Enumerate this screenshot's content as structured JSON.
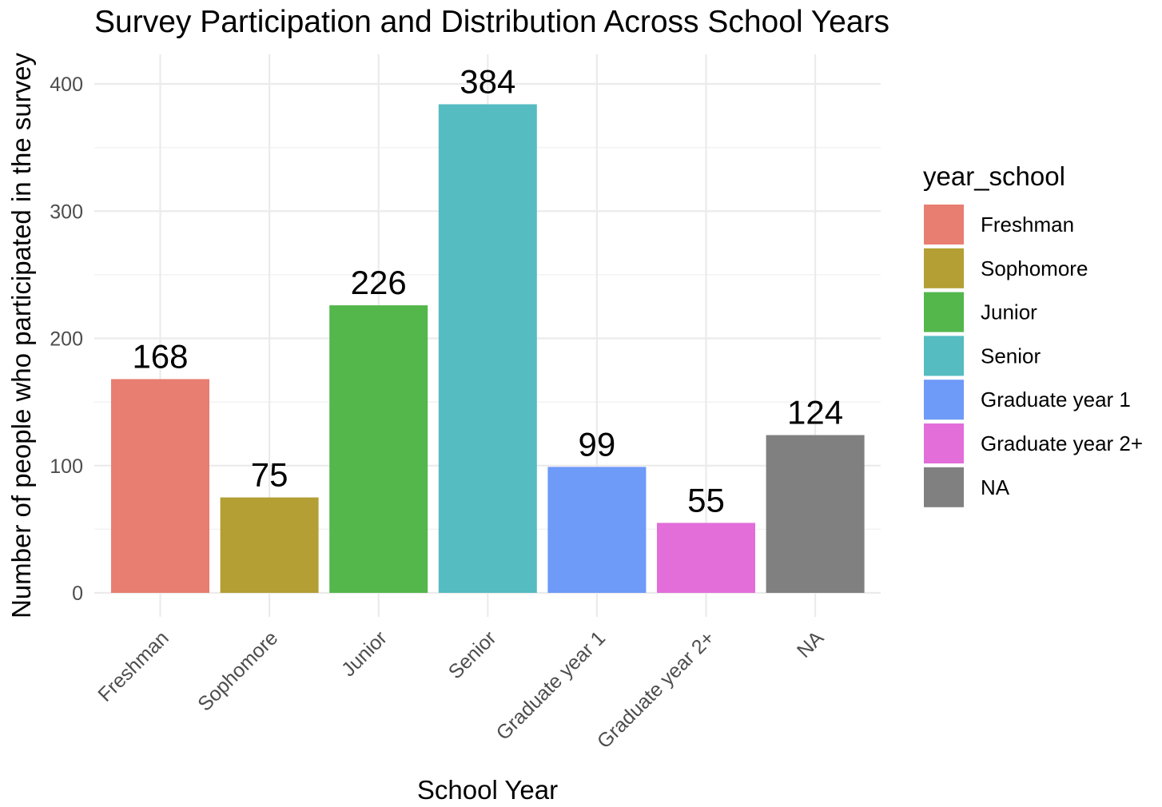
{
  "chart_data": {
    "type": "bar",
    "title": "Survey Participation and Distribution Across School Years",
    "xlabel": "School Year",
    "ylabel": "Number of people who participated in the survey",
    "categories": [
      "Freshman",
      "Sophomore",
      "Junior",
      "Senior",
      "Graduate year 1",
      "Graduate year 2+",
      "NA"
    ],
    "values": [
      168,
      75,
      226,
      384,
      99,
      55,
      124
    ],
    "colors": [
      "#E87D72",
      "#B39F33",
      "#53B74C",
      "#55BCC2",
      "#6E9AF8",
      "#E36EDA",
      "#808080"
    ],
    "ylim": [
      0,
      420
    ],
    "yticks": [
      0,
      100,
      200,
      300,
      400
    ],
    "grid": true,
    "legend": {
      "title": "year_school",
      "position": "right",
      "items": [
        "Freshman",
        "Sophomore",
        "Junior",
        "Senior",
        "Graduate year 1",
        "Graduate year 2+",
        "NA"
      ]
    }
  }
}
